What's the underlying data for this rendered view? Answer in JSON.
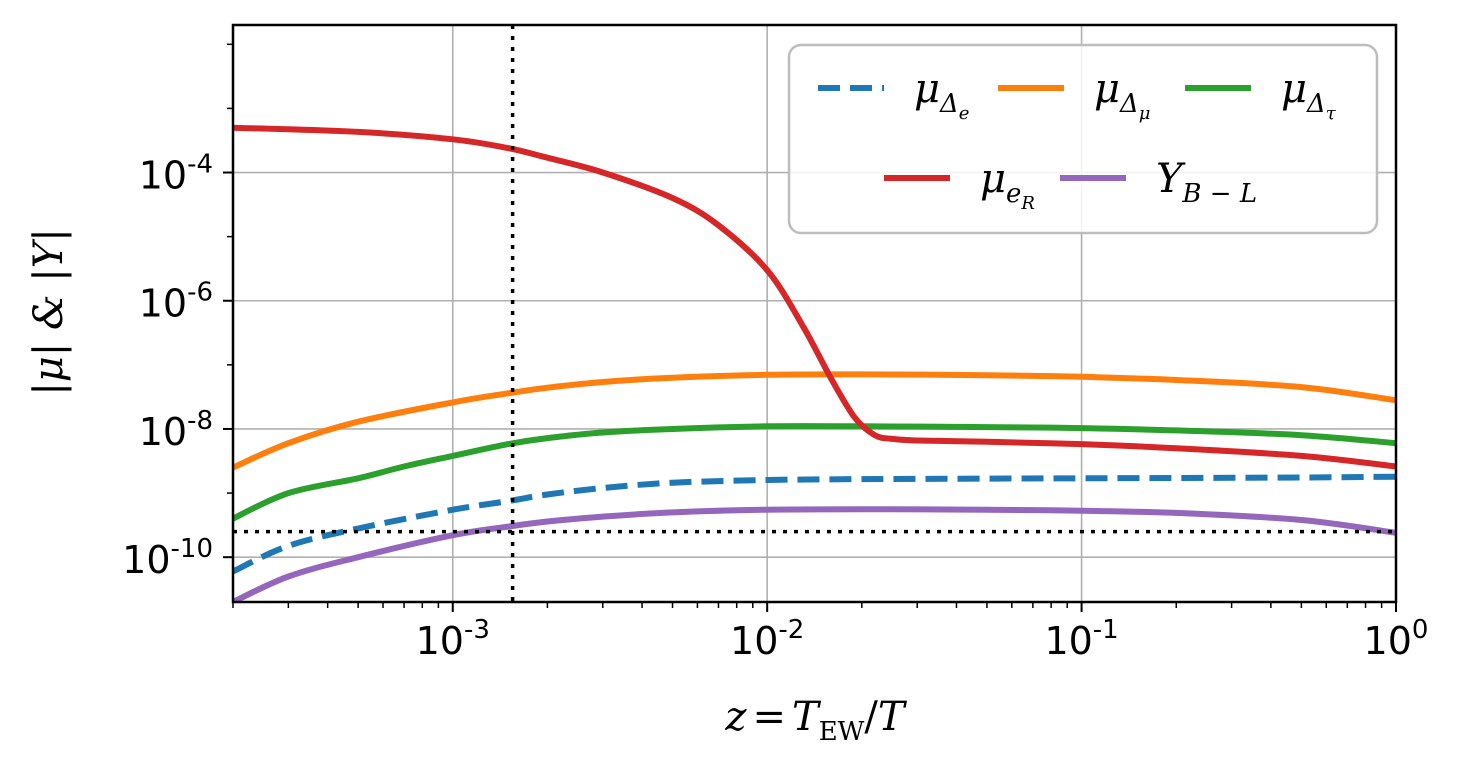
{
  "chart_data": {
    "type": "line",
    "title": "",
    "xlabel": "z = T_EW/T",
    "xlabel_parts": {
      "lhs": "z",
      "eq": "=",
      "num": "T",
      "num_sub": "EW",
      "slash": "/",
      "den": "T"
    },
    "ylabel": "|μ| & |Y|",
    "xscale": "log",
    "yscale": "log",
    "xlim": [
      0.0002,
      1
    ],
    "ylim": [
      2e-11,
      0.02
    ],
    "grid": true,
    "legend_position": "top-right",
    "x_ticks": [
      {
        "base": "10",
        "exp": "-3",
        "value": 0.001
      },
      {
        "base": "10",
        "exp": "-2",
        "value": 0.01
      },
      {
        "base": "10",
        "exp": "-1",
        "value": 0.1
      },
      {
        "base": "10",
        "exp": "0",
        "value": 1
      }
    ],
    "y_ticks": [
      {
        "base": "10",
        "exp": "-4",
        "value": 0.0001
      },
      {
        "base": "10",
        "exp": "-6",
        "value": 1e-06
      },
      {
        "base": "10",
        "exp": "-8",
        "value": 1e-08
      },
      {
        "base": "10",
        "exp": "-10",
        "value": 1e-10
      }
    ],
    "reference_lines": [
      {
        "orientation": "vertical",
        "value": 0.00155,
        "style": "dotted",
        "color": "#000000"
      },
      {
        "orientation": "horizontal",
        "value": 2.5e-10,
        "style": "dotted",
        "color": "#000000"
      }
    ],
    "series": [
      {
        "name": "μ_Δe",
        "label_main": "μ",
        "label_sub": "Δ",
        "label_subsub": "e",
        "color": "#1f77b4",
        "dash": "dashed",
        "x": [
          0.0002,
          0.0003,
          0.0005,
          0.001,
          0.0015,
          0.002,
          0.003,
          0.005,
          0.01,
          0.02,
          0.05,
          0.1,
          0.2,
          0.5,
          1
        ],
        "y": [
          6e-11,
          1.5e-10,
          2.8e-10,
          5.5e-10,
          7.5e-10,
          9.5e-10,
          1.2e-09,
          1.45e-09,
          1.6e-09,
          1.65e-09,
          1.68e-09,
          1.7e-09,
          1.72e-09,
          1.75e-09,
          1.8e-09
        ]
      },
      {
        "name": "μ_Δμ",
        "label_main": "μ",
        "label_sub": "Δ",
        "label_subsub": "μ",
        "color": "#ff7f0e",
        "dash": "solid",
        "x": [
          0.0002,
          0.0003,
          0.0005,
          0.001,
          0.0015,
          0.002,
          0.003,
          0.005,
          0.01,
          0.02,
          0.05,
          0.1,
          0.2,
          0.5,
          1
        ],
        "y": [
          2.5e-09,
          6e-09,
          1.3e-08,
          2.6e-08,
          3.6e-08,
          4.4e-08,
          5.4e-08,
          6.3e-08,
          7e-08,
          7.1e-08,
          6.9e-08,
          6.5e-08,
          5.8e-08,
          4.5e-08,
          2.8e-08
        ]
      },
      {
        "name": "μ_Δτ",
        "label_main": "μ",
        "label_sub": "Δ",
        "label_subsub": "τ",
        "color": "#2ca02c",
        "dash": "solid",
        "x": [
          0.0002,
          0.0003,
          0.0005,
          0.0007,
          0.001,
          0.0015,
          0.002,
          0.003,
          0.005,
          0.01,
          0.02,
          0.05,
          0.1,
          0.2,
          0.5,
          1
        ],
        "y": [
          4e-10,
          1e-09,
          1.7e-09,
          2.6e-09,
          3.8e-09,
          5.8e-09,
          7.2e-09,
          8.8e-09,
          1e-08,
          1.1e-08,
          1.1e-08,
          1.07e-08,
          1.03e-08,
          9.5e-09,
          8e-09,
          6e-09
        ]
      },
      {
        "name": "μ_eR",
        "label_main": "μ",
        "label_sub": "e",
        "label_subsub": "R",
        "color": "#d62728",
        "dash": "solid",
        "x": [
          0.0002,
          0.0005,
          0.001,
          0.0015,
          0.002,
          0.003,
          0.005,
          0.007,
          0.01,
          0.013,
          0.016,
          0.019,
          0.022,
          0.025,
          0.03,
          0.05,
          0.1,
          0.2,
          0.5,
          1
        ],
        "y": [
          0.0005,
          0.00043,
          0.00033,
          0.00024,
          0.00017,
          0.0001,
          4e-05,
          1.5e-05,
          3e-06,
          4e-07,
          6e-08,
          1.5e-08,
          8e-09,
          7e-09,
          6.6e-09,
          6.3e-09,
          5.8e-09,
          5e-09,
          3.8e-09,
          2.6e-09
        ]
      },
      {
        "name": "Y_B-L",
        "label_main": "Y",
        "label_sub": "B − L",
        "label_subsub": "",
        "color": "#9467bd",
        "dash": "solid",
        "x": [
          0.0002,
          0.0003,
          0.0005,
          0.001,
          0.0015,
          0.002,
          0.003,
          0.005,
          0.01,
          0.02,
          0.05,
          0.1,
          0.2,
          0.5,
          1
        ],
        "y": [
          2e-11,
          5e-11,
          1e-10,
          2.2e-10,
          3e-10,
          3.6e-10,
          4.3e-10,
          5e-10,
          5.5e-10,
          5.6e-10,
          5.5e-10,
          5.3e-10,
          4.9e-10,
          3.8e-10,
          2.4e-10
        ]
      }
    ]
  }
}
